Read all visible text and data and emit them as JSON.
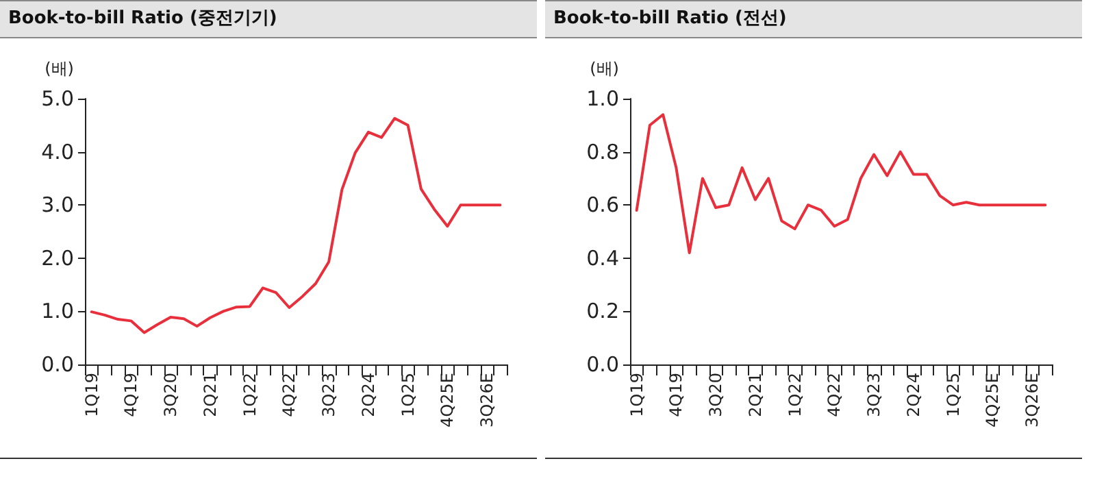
{
  "chart_data": [
    {
      "type": "line",
      "title": "Book-to-bill Ratio (중전기기)",
      "ylabel": "(배)",
      "categories": [
        "1Q19",
        null,
        null,
        "4Q19",
        null,
        null,
        "3Q20",
        null,
        null,
        "2Q21",
        null,
        null,
        "1Q22",
        null,
        null,
        "4Q22",
        null,
        null,
        "3Q23",
        null,
        null,
        "2Q24",
        null,
        null,
        "1Q25",
        null,
        null,
        "4Q25E",
        null,
        null,
        "3Q26E",
        null
      ],
      "series": [
        {
          "color": "#e8303c",
          "values": [
            0.99,
            0.93,
            0.85,
            0.82,
            0.6,
            0.75,
            0.89,
            0.86,
            0.72,
            0.88,
            1.0,
            1.08,
            1.09,
            1.44,
            1.35,
            1.07,
            1.28,
            1.52,
            1.93,
            3.29,
            3.98,
            4.37,
            4.27,
            4.63,
            4.5,
            3.3,
            2.92,
            2.6,
            3.0,
            3.0,
            3.0,
            3.0
          ]
        }
      ],
      "ylim": [
        0,
        5
      ],
      "yticks": [
        {
          "value": 0,
          "label": "0.0"
        },
        {
          "value": 1,
          "label": "1.0"
        },
        {
          "value": 2,
          "label": "2.0"
        },
        {
          "value": 3,
          "label": "3.0"
        },
        {
          "value": 4,
          "label": "4.0"
        },
        {
          "value": 5,
          "label": "5.0"
        }
      ],
      "grid": false,
      "marker": "none",
      "line_style": "solid"
    },
    {
      "type": "line",
      "title": "Book-to-bill Ratio (전선)",
      "ylabel": "(배)",
      "categories": [
        "1Q19",
        null,
        null,
        "4Q19",
        null,
        null,
        "3Q20",
        null,
        null,
        "2Q21",
        null,
        null,
        "1Q22",
        null,
        null,
        "4Q22",
        null,
        null,
        "3Q23",
        null,
        null,
        "2Q24",
        null,
        null,
        "1Q25",
        null,
        null,
        "4Q25E",
        null,
        null,
        "3Q26E",
        null
      ],
      "series": [
        {
          "color": "#e8303c",
          "values": [
            0.58,
            0.9,
            0.94,
            0.74,
            0.42,
            0.7,
            0.59,
            0.6,
            0.74,
            0.62,
            0.7,
            0.54,
            0.51,
            0.6,
            0.58,
            0.52,
            0.545,
            0.7,
            0.79,
            0.71,
            0.8,
            0.715,
            0.715,
            0.635,
            0.6,
            0.61,
            0.6,
            0.6,
            0.6,
            0.6,
            0.6,
            0.6
          ]
        }
      ],
      "ylim": [
        0,
        1
      ],
      "yticks": [
        {
          "value": 0,
          "label": "0.0"
        },
        {
          "value": 0.2,
          "label": "0.2"
        },
        {
          "value": 0.4,
          "label": "0.4"
        },
        {
          "value": 0.6,
          "label": "0.6"
        },
        {
          "value": 0.8,
          "label": "0.8"
        },
        {
          "value": 1,
          "label": "1.0"
        }
      ],
      "grid": false,
      "marker": "none",
      "line_style": "solid"
    }
  ]
}
